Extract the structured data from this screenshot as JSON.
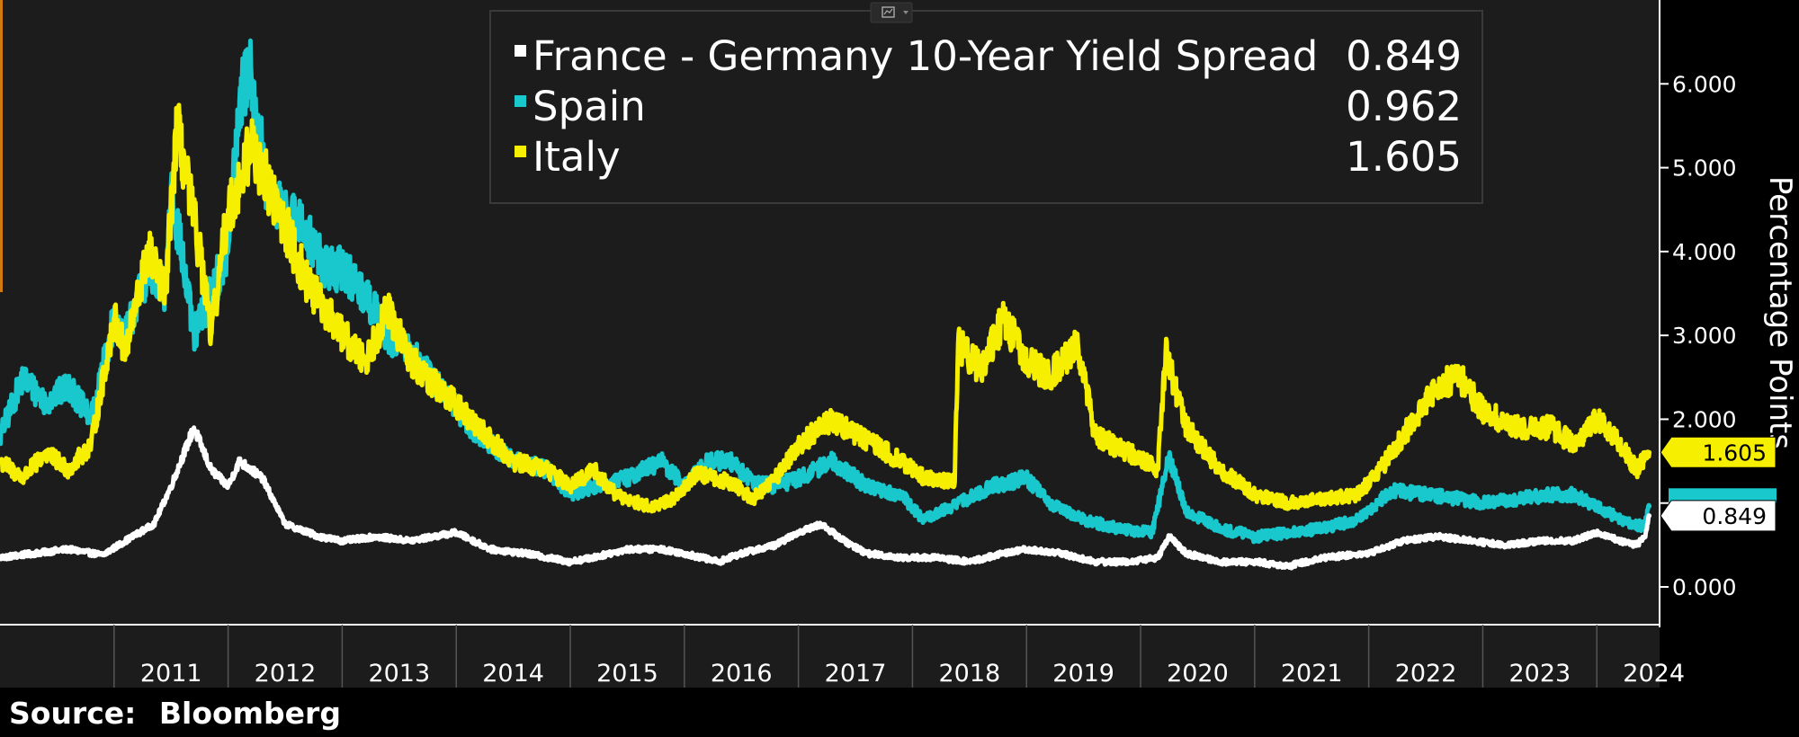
{
  "source_label": "Source:",
  "source_name": "Bloomberg",
  "chart_data": {
    "type": "line",
    "ylabel": "Percentage Points",
    "ylim": [
      -0.45,
      7.0
    ],
    "yticks": [
      "0.000",
      "1.000",
      "2.000",
      "3.000",
      "4.000",
      "5.000",
      "6.000"
    ],
    "xlim": [
      2010.0,
      2024.55
    ],
    "x_tick_labels": [
      "2011",
      "2012",
      "2013",
      "2014",
      "2015",
      "2016",
      "2017",
      "2018",
      "2019",
      "2020",
      "2021",
      "2022",
      "2023",
      "2024"
    ],
    "legend_position": "top",
    "grid": false,
    "series": [
      {
        "name": "France - Germany 10-Year Yield Spread",
        "last_value": "0.849",
        "color": "#ffffff",
        "x": [
          2010.0,
          2010.3,
          2010.6,
          2010.9,
          2011.1,
          2011.35,
          2011.5,
          2011.7,
          2011.85,
          2012.0,
          2012.1,
          2012.3,
          2012.5,
          2012.8,
          2013.0,
          2013.3,
          2013.6,
          2014.0,
          2014.3,
          2014.6,
          2015.0,
          2015.2,
          2015.5,
          2015.8,
          2016.0,
          2016.3,
          2016.5,
          2016.8,
          2017.0,
          2017.2,
          2017.4,
          2017.6,
          2017.9,
          2018.2,
          2018.5,
          2018.8,
          2019.0,
          2019.3,
          2019.6,
          2019.9,
          2020.15,
          2020.25,
          2020.4,
          2020.7,
          2021.0,
          2021.3,
          2021.6,
          2022.0,
          2022.3,
          2022.6,
          2022.9,
          2023.2,
          2023.5,
          2023.8,
          2024.0,
          2024.2,
          2024.35,
          2024.42,
          2024.46
        ],
        "y": [
          0.35,
          0.4,
          0.45,
          0.38,
          0.55,
          0.75,
          1.2,
          1.9,
          1.4,
          1.2,
          1.5,
          1.3,
          0.75,
          0.6,
          0.55,
          0.6,
          0.55,
          0.65,
          0.45,
          0.4,
          0.3,
          0.35,
          0.45,
          0.45,
          0.4,
          0.3,
          0.4,
          0.5,
          0.65,
          0.75,
          0.55,
          0.4,
          0.35,
          0.35,
          0.3,
          0.4,
          0.45,
          0.4,
          0.3,
          0.3,
          0.35,
          0.6,
          0.4,
          0.3,
          0.3,
          0.25,
          0.35,
          0.4,
          0.55,
          0.6,
          0.55,
          0.5,
          0.55,
          0.55,
          0.65,
          0.55,
          0.5,
          0.6,
          0.849
        ]
      },
      {
        "name": "Spain",
        "last_value": "0.962",
        "color": "#18c8cc",
        "x": [
          2010.0,
          2010.2,
          2010.4,
          2010.6,
          2010.8,
          2011.0,
          2011.1,
          2011.3,
          2011.45,
          2011.5,
          2011.7,
          2011.85,
          2012.0,
          2012.1,
          2012.2,
          2012.35,
          2012.5,
          2012.7,
          2012.85,
          2013.0,
          2013.2,
          2013.4,
          2013.6,
          2013.9,
          2014.2,
          2014.5,
          2014.8,
          2015.0,
          2015.2,
          2015.5,
          2015.8,
          2016.0,
          2016.2,
          2016.4,
          2016.6,
          2016.8,
          2017.0,
          2017.3,
          2017.6,
          2017.9,
          2018.1,
          2018.4,
          2018.7,
          2019.0,
          2019.2,
          2019.5,
          2019.8,
          2020.1,
          2020.25,
          2020.4,
          2020.7,
          2021.0,
          2021.3,
          2021.6,
          2021.9,
          2022.2,
          2022.5,
          2022.8,
          2023.0,
          2023.3,
          2023.6,
          2023.8,
          2024.0,
          2024.3,
          2024.42,
          2024.46
        ],
        "y": [
          1.8,
          2.5,
          2.2,
          2.4,
          2.0,
          3.2,
          3.0,
          3.8,
          3.5,
          4.8,
          3.0,
          3.5,
          4.0,
          5.8,
          6.2,
          4.6,
          4.5,
          4.2,
          3.8,
          3.8,
          3.5,
          3.0,
          2.8,
          2.3,
          1.8,
          1.5,
          1.4,
          1.1,
          1.2,
          1.3,
          1.5,
          1.2,
          1.5,
          1.5,
          1.25,
          1.2,
          1.3,
          1.5,
          1.2,
          1.1,
          0.8,
          1.0,
          1.2,
          1.3,
          1.0,
          0.8,
          0.7,
          0.65,
          1.55,
          0.9,
          0.7,
          0.6,
          0.65,
          0.7,
          0.8,
          1.15,
          1.1,
          1.05,
          1.0,
          1.05,
          1.1,
          1.1,
          0.95,
          0.75,
          0.72,
          0.962
        ]
      },
      {
        "name": "Italy",
        "last_value": "1.605",
        "color": "#f6f000",
        "x": [
          2010.0,
          2010.2,
          2010.4,
          2010.6,
          2010.8,
          2011.0,
          2011.1,
          2011.3,
          2011.45,
          2011.55,
          2011.75,
          2011.85,
          2012.0,
          2012.1,
          2012.2,
          2012.35,
          2012.5,
          2012.7,
          2013.0,
          2013.2,
          2013.4,
          2013.6,
          2013.9,
          2014.2,
          2014.5,
          2014.8,
          2015.0,
          2015.2,
          2015.4,
          2015.7,
          2015.9,
          2016.1,
          2016.4,
          2016.6,
          2016.8,
          2017.0,
          2017.3,
          2017.6,
          2017.9,
          2018.1,
          2018.37,
          2018.4,
          2018.6,
          2018.8,
          2019.0,
          2019.2,
          2019.45,
          2019.6,
          2019.9,
          2020.15,
          2020.22,
          2020.4,
          2020.7,
          2021.0,
          2021.3,
          2021.6,
          2021.9,
          2022.1,
          2022.4,
          2022.6,
          2022.8,
          2023.0,
          2023.3,
          2023.6,
          2023.8,
          2024.0,
          2024.2,
          2024.35,
          2024.46
        ],
        "y": [
          1.5,
          1.3,
          1.6,
          1.4,
          1.7,
          3.2,
          2.8,
          4.0,
          3.5,
          5.5,
          4.0,
          3.0,
          4.5,
          4.8,
          5.3,
          4.8,
          4.3,
          3.6,
          3.0,
          2.7,
          3.3,
          2.7,
          2.3,
          1.9,
          1.5,
          1.4,
          1.2,
          1.4,
          1.1,
          0.95,
          1.05,
          1.35,
          1.25,
          1.05,
          1.3,
          1.7,
          2.0,
          1.75,
          1.5,
          1.3,
          1.25,
          2.9,
          2.6,
          3.2,
          2.7,
          2.5,
          2.9,
          1.8,
          1.6,
          1.4,
          2.8,
          1.9,
          1.4,
          1.1,
          1.0,
          1.05,
          1.1,
          1.4,
          2.0,
          2.4,
          2.5,
          2.1,
          1.9,
          1.9,
          1.7,
          2.0,
          1.7,
          1.4,
          1.605
        ]
      }
    ]
  }
}
